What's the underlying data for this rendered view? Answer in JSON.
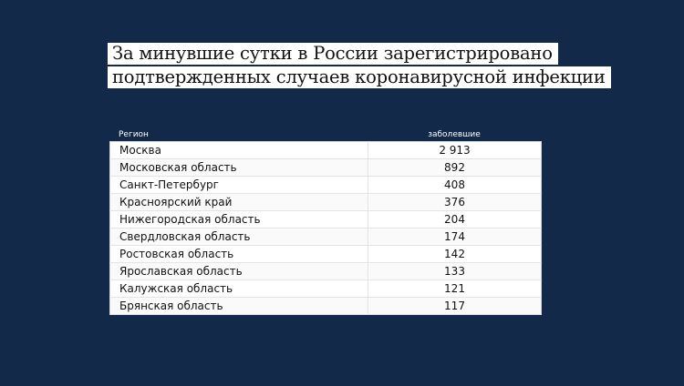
{
  "title": {
    "line1": "За минувшие сутки в России зарегистрировано",
    "line2": "подтвержденных случаев коронавирусной инфекции"
  },
  "colors": {
    "background": "#13294a",
    "table": "#ffffff"
  },
  "chart_data": {
    "type": "table",
    "columns": [
      "Регион",
      "заболевшие"
    ],
    "rows": [
      [
        "Москва",
        "2 913"
      ],
      [
        "Московская область",
        "892"
      ],
      [
        "Санкт-Петербург",
        "408"
      ],
      [
        "Красноярский край",
        "376"
      ],
      [
        "Нижегородская область",
        "204"
      ],
      [
        "Свердловская область",
        "174"
      ],
      [
        "Ростовская область",
        "142"
      ],
      [
        "Ярославская область",
        "133"
      ],
      [
        "Калужская область",
        "121"
      ],
      [
        "Брянская область",
        "117"
      ]
    ]
  }
}
